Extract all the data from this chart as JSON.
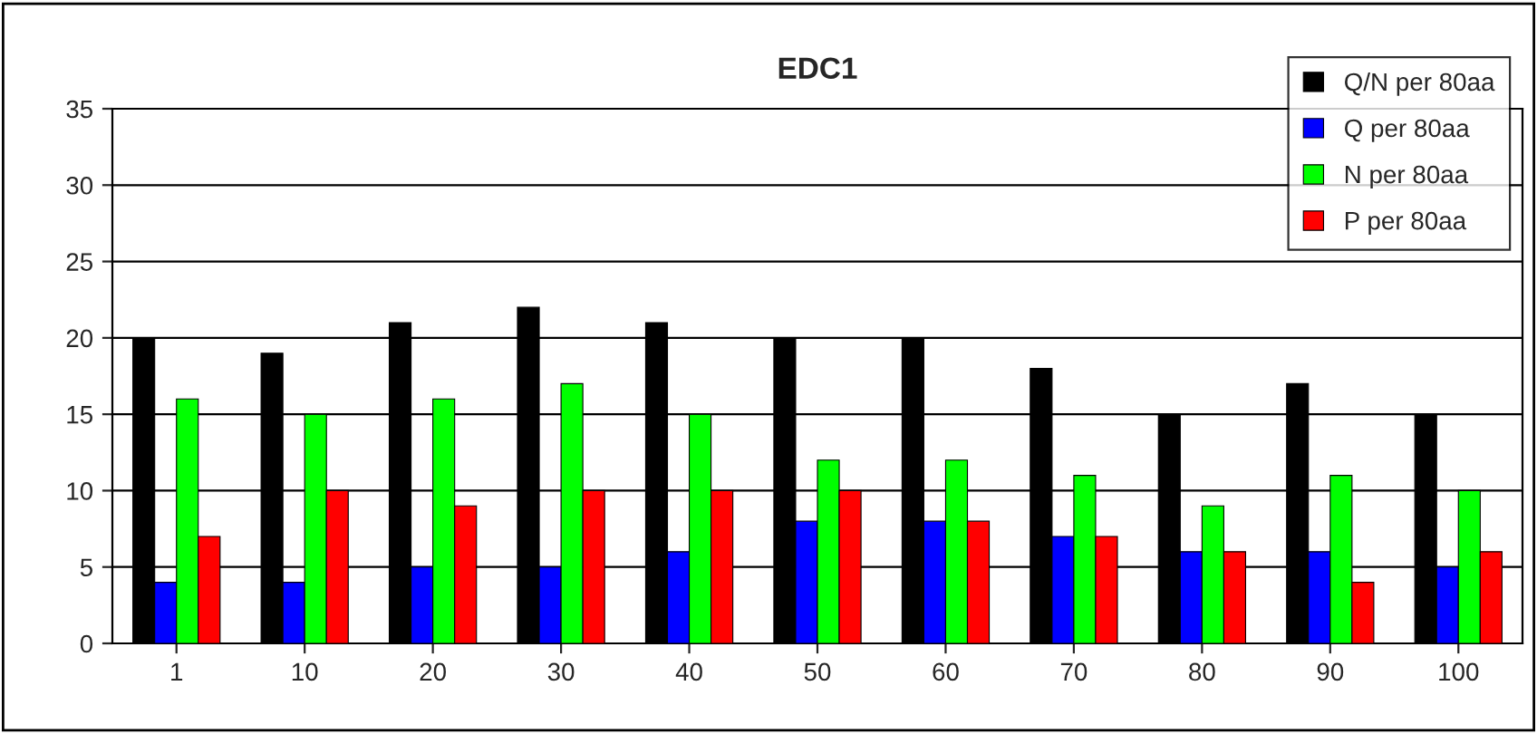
{
  "chart_data": {
    "type": "bar",
    "title": "EDC1",
    "categories": [
      "1",
      "10",
      "20",
      "30",
      "40",
      "50",
      "60",
      "70",
      "80",
      "90",
      "100"
    ],
    "series": [
      {
        "name": "Q/N per 80aa",
        "color": "#000000",
        "values": [
          20,
          19,
          21,
          22,
          21,
          20,
          20,
          18,
          15,
          17,
          15
        ]
      },
      {
        "name": "Q per 80aa",
        "color": "#0000ff",
        "values": [
          4,
          4,
          5,
          5,
          6,
          8,
          8,
          7,
          6,
          6,
          5
        ]
      },
      {
        "name": "N per 80aa",
        "color": "#00ff00",
        "values": [
          16,
          15,
          16,
          17,
          15,
          12,
          12,
          11,
          9,
          11,
          10
        ]
      },
      {
        "name": "P per 80aa",
        "color": "#ff0000",
        "values": [
          7,
          10,
          9,
          10,
          10,
          10,
          8,
          7,
          6,
          4,
          6
        ]
      }
    ],
    "ylim": [
      0,
      35
    ],
    "yticks": [
      0,
      5,
      10,
      15,
      20,
      25,
      30,
      35
    ],
    "grid": "y",
    "legend": "top right"
  }
}
